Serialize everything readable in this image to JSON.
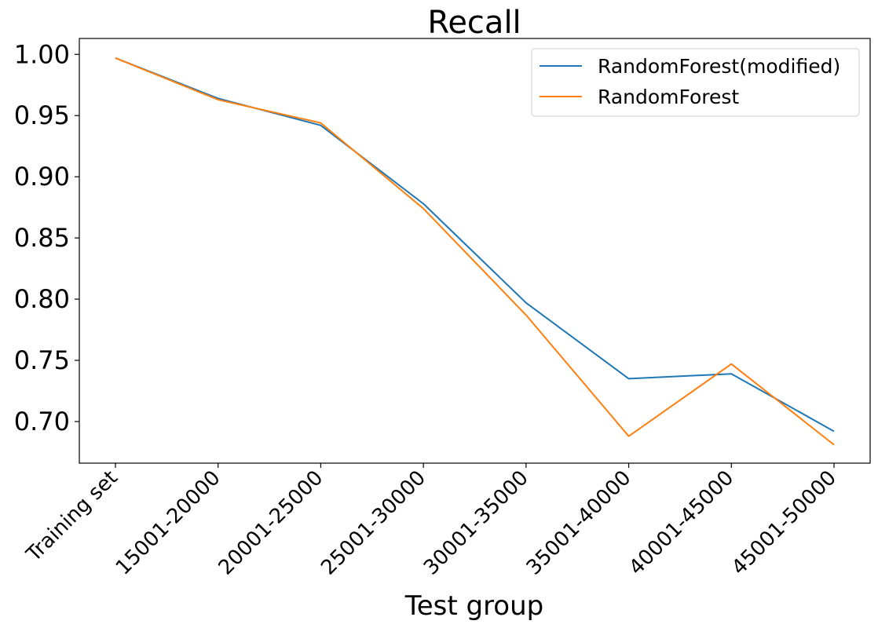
{
  "chart_data": {
    "type": "line",
    "title": "Recall",
    "xlabel": "Test group",
    "ylabel": "",
    "categories": [
      "Training set",
      "15001-20000",
      "20001-25000",
      "25001-30000",
      "30001-35000",
      "35001-40000",
      "40001-45000",
      "45001-50000"
    ],
    "series": [
      {
        "name": "RandomForest(modified)",
        "color": "#1f77b4",
        "values": [
          0.997,
          0.964,
          0.942,
          0.878,
          0.797,
          0.735,
          0.739,
          0.692
        ]
      },
      {
        "name": "RandomForest",
        "color": "#ff7f0e",
        "values": [
          0.997,
          0.963,
          0.944,
          0.874,
          0.787,
          0.688,
          0.747,
          0.681
        ]
      }
    ],
    "yticks": [
      "0.70",
      "0.75",
      "0.80",
      "0.85",
      "0.90",
      "0.95",
      "1.00"
    ],
    "ylim": [
      0.666,
      1.013
    ],
    "grid": false,
    "legend_position": "top-right"
  }
}
